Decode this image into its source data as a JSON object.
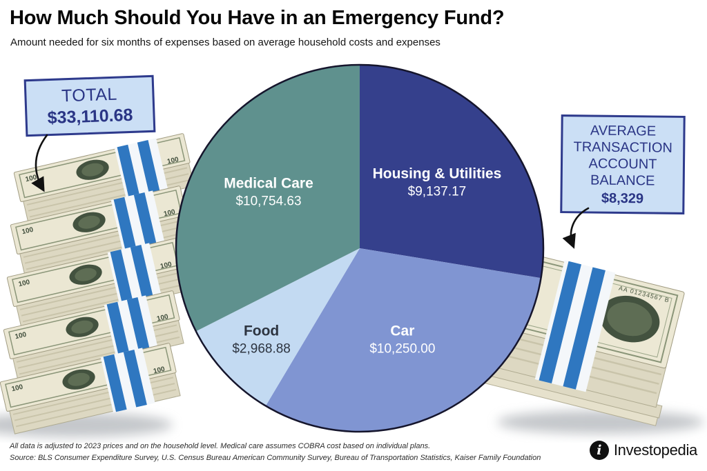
{
  "header": {
    "title": "How Much Should You Have in an Emergency Fund?",
    "subtitle": "Amount needed for six months of expenses based on average household costs and expenses"
  },
  "callouts": {
    "total": {
      "label": "TOTAL",
      "value": "$33,110.68"
    },
    "average": {
      "label": "AVERAGE TRANSACTION ACCOUNT BALANCE",
      "value": "$8,329"
    }
  },
  "chart_data": {
    "type": "pie",
    "title": "How Much Should You Have in an Emergency Fund?",
    "total": 33110.68,
    "start_angle_deg": 0,
    "direction": "clockwise",
    "legend_position": "none",
    "slices": [
      {
        "label": "Housing & Utilities",
        "value": 9137.17,
        "display": "$9,137.17",
        "percent": 27.6,
        "color": "#35408c",
        "text_color": "#ffffff",
        "label_r": 0.55
      },
      {
        "label": "Car",
        "value": 10250.0,
        "display": "$10,250.00",
        "percent": 31.0,
        "color": "#8095d2",
        "text_color": "#ffffff",
        "label_r": 0.55
      },
      {
        "label": "Food",
        "value": 2968.88,
        "display": "$2,968.88",
        "percent": 9.0,
        "color": "#c3daf2",
        "text_color": "#2d3440",
        "label_r": 0.73
      },
      {
        "label": "Medical Care",
        "value": 10754.63,
        "display": "$10,754.63",
        "percent": 32.5,
        "color": "#5f918e",
        "text_color": "#ffffff",
        "label_r": 0.58
      }
    ]
  },
  "illustration": {
    "denomination": "100",
    "serial": "AA 01234567 B"
  },
  "palette": {
    "callout_bg": "#cbdff5",
    "callout_border": "#2e3a8c",
    "callout_text": "#2a3585",
    "pie_outline": "#15152c",
    "band_blue": "#2f77c0",
    "bill_paper": "#ebe7d3",
    "bill_ink": "#43523f"
  },
  "footer": {
    "note": "All data is adjusted to 2023 prices and on the household level. Medical care assumes COBRA cost based on individual plans.",
    "source": "Source: BLS Consumer Expenditure Survey, U.S. Census Bureau American Community Survey, Bureau of Transportation Statistics, Kaiser Family Foundation",
    "brand": "Investopedia",
    "brand_mark": "i"
  }
}
